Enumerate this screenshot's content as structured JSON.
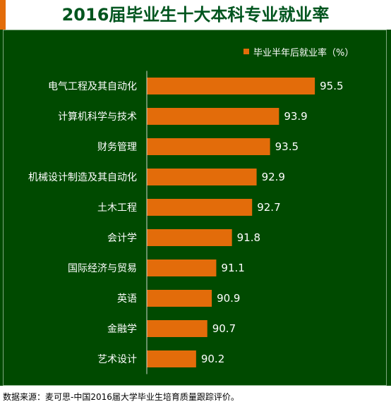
{
  "title": "2016届毕业生十大本科专业就业率",
  "legend": {
    "label": "毕业半年后就业率（%）"
  },
  "footnote": "数据来源：麦可思-中国2016届大学毕业生培育质量跟踪评价。",
  "colors": {
    "bar": "#e36c0a",
    "background": "#004a00",
    "header": "#ffffff",
    "title": "#00551e"
  },
  "chart_data": {
    "type": "bar",
    "orientation": "horizontal",
    "categories": [
      "电气工程及其自动化",
      "计算机科学与技术",
      "财务管理",
      "机械设计制造及其自动化",
      "土木工程",
      "会计学",
      "国际经济与贸易",
      "英语",
      "金融学",
      "艺术设计"
    ],
    "series": [
      {
        "name": "毕业半年后就业率（%）",
        "values": [
          95.5,
          93.9,
          93.5,
          92.9,
          92.7,
          91.8,
          91.1,
          90.9,
          90.7,
          90.2
        ]
      }
    ],
    "value_labels": [
      "95.5",
      "93.9",
      "93.5",
      "92.9",
      "92.7",
      "91.8",
      "91.1",
      "90.9",
      "90.7",
      "90.2"
    ],
    "xlim": [
      88,
      96
    ],
    "legend_position": "top-right",
    "grid": false
  }
}
